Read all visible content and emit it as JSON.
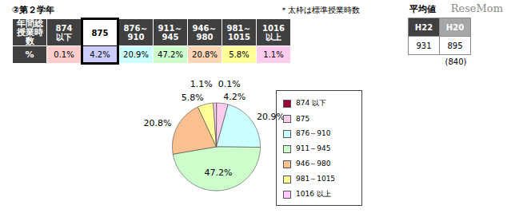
{
  "header": {
    "title": "②第２学年",
    "note": "＊太枠は標準授業時数",
    "watermark": "ReseMom"
  },
  "table": {
    "row_headers": [
      "年間総授業時数",
      "%"
    ],
    "columns": [
      [
        "874",
        "以下"
      ],
      [
        "875"
      ],
      [
        "876～",
        "910"
      ],
      [
        "911～",
        "945"
      ],
      [
        "946～",
        "980"
      ],
      [
        "981～",
        "1015"
      ],
      [
        "1016",
        "以上"
      ]
    ],
    "values": [
      "0.1%",
      "4.2%",
      "20.9%",
      "47.2%",
      "20.8%",
      "5.8%",
      "1.1%"
    ],
    "colors": [
      "#ffcccc",
      "#ccccff",
      "#ccffff",
      "#ccffcc",
      "#fcd5b4",
      "#ffff99",
      "#ffccee"
    ],
    "standard": "875"
  },
  "average": {
    "title": "平均値",
    "columns": [
      "H22",
      "H20"
    ],
    "colors": [
      "#404040",
      "#a6a6a6"
    ],
    "values": [
      "931",
      "895"
    ],
    "note": "(840)"
  },
  "chart_data": {
    "type": "pie",
    "categories": [
      "874 以下",
      "875",
      "876～910",
      "911～945",
      "946～980",
      "981～1015",
      "1016 以上"
    ],
    "values": [
      0.1,
      4.2,
      20.9,
      47.2,
      20.8,
      5.8,
      1.1
    ],
    "value_labels": [
      "0.1%",
      "4.2%",
      "20.9%",
      "47.2%",
      "20.8%",
      "5.8%",
      "1.1%"
    ],
    "colors": [
      "#990033",
      "#ffccee",
      "#ccffff",
      "#ccffcc",
      "#fac08f",
      "#ffff99",
      "#ffccff"
    ],
    "data_labels": true,
    "legend": "right"
  }
}
